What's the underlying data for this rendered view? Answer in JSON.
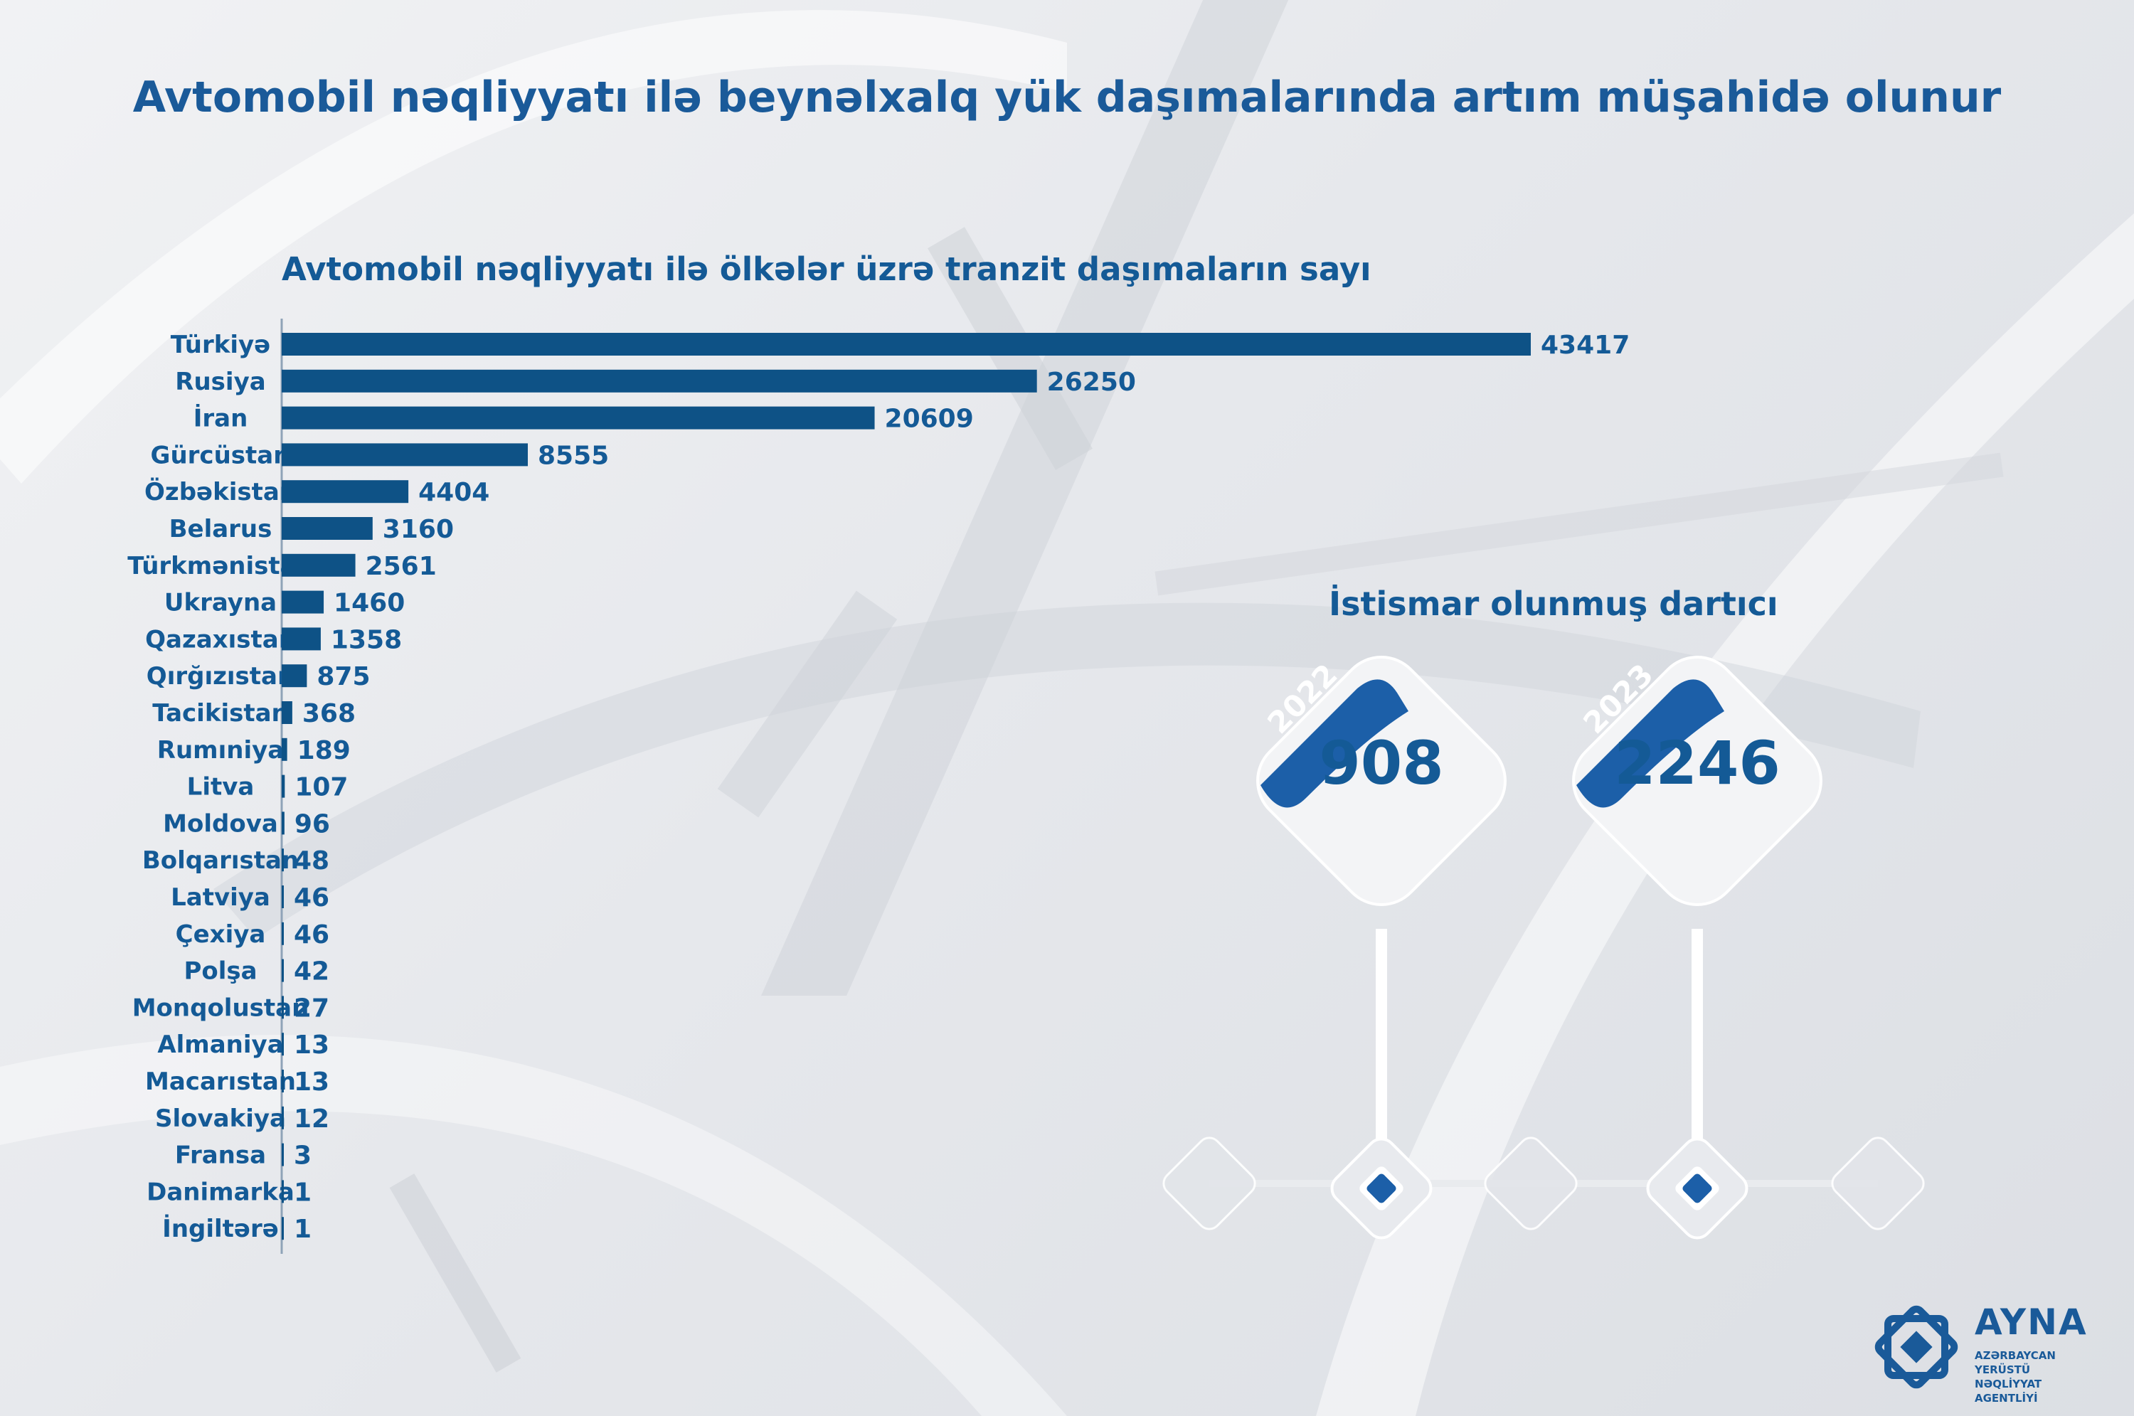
{
  "header": {
    "title": "Avtomobil nəqliyyatı ilə beynəlxalq yük daşımalarında artım müşahidə olunur"
  },
  "chart_data": {
    "type": "bar",
    "orientation": "horizontal",
    "title": "Avtomobil nəqliyyatı ilə ölkələr üzrə tranzit daşımaların sayı",
    "categories": [
      "Türkiyə",
      "Rusiya",
      "İran",
      "Gürcüstan",
      "Özbəkistan",
      "Belarus",
      "Türkmənistan",
      "Ukrayna",
      "Qazaxıstan",
      "Qırğızıstan",
      "Tacikistan",
      "Rumıniya",
      "Litva",
      "Moldova",
      "Bolqarıstan",
      "Latviya",
      "Çexiya",
      "Polşa",
      "Monqolustan",
      "Almaniya",
      "Macarıstan",
      "Slovakiya",
      "Fransa",
      "Danimarka",
      "İngiltərə"
    ],
    "values": [
      43417,
      26250,
      20609,
      8555,
      4404,
      3160,
      2561,
      1460,
      1358,
      875,
      368,
      189,
      107,
      96,
      48,
      46,
      46,
      42,
      27,
      13,
      13,
      12,
      3,
      1,
      1
    ],
    "bar_color": "#0e5286",
    "data_labels": true,
    "legend": "none",
    "grid": false
  },
  "tractors": {
    "title": "İstismar olunmuş dartıcı",
    "cards": [
      {
        "year": "2022",
        "value": "908"
      },
      {
        "year": "2023",
        "value": "2246"
      }
    ],
    "color_accent": "#1c5fa8"
  },
  "logo": {
    "name": "AYNA",
    "subtitle": "AZƏRBAYCAN YERÜSTÜ NƏQLİYYAT AGENTLİYİ",
    "icon": "ayna-star-logo-icon"
  }
}
